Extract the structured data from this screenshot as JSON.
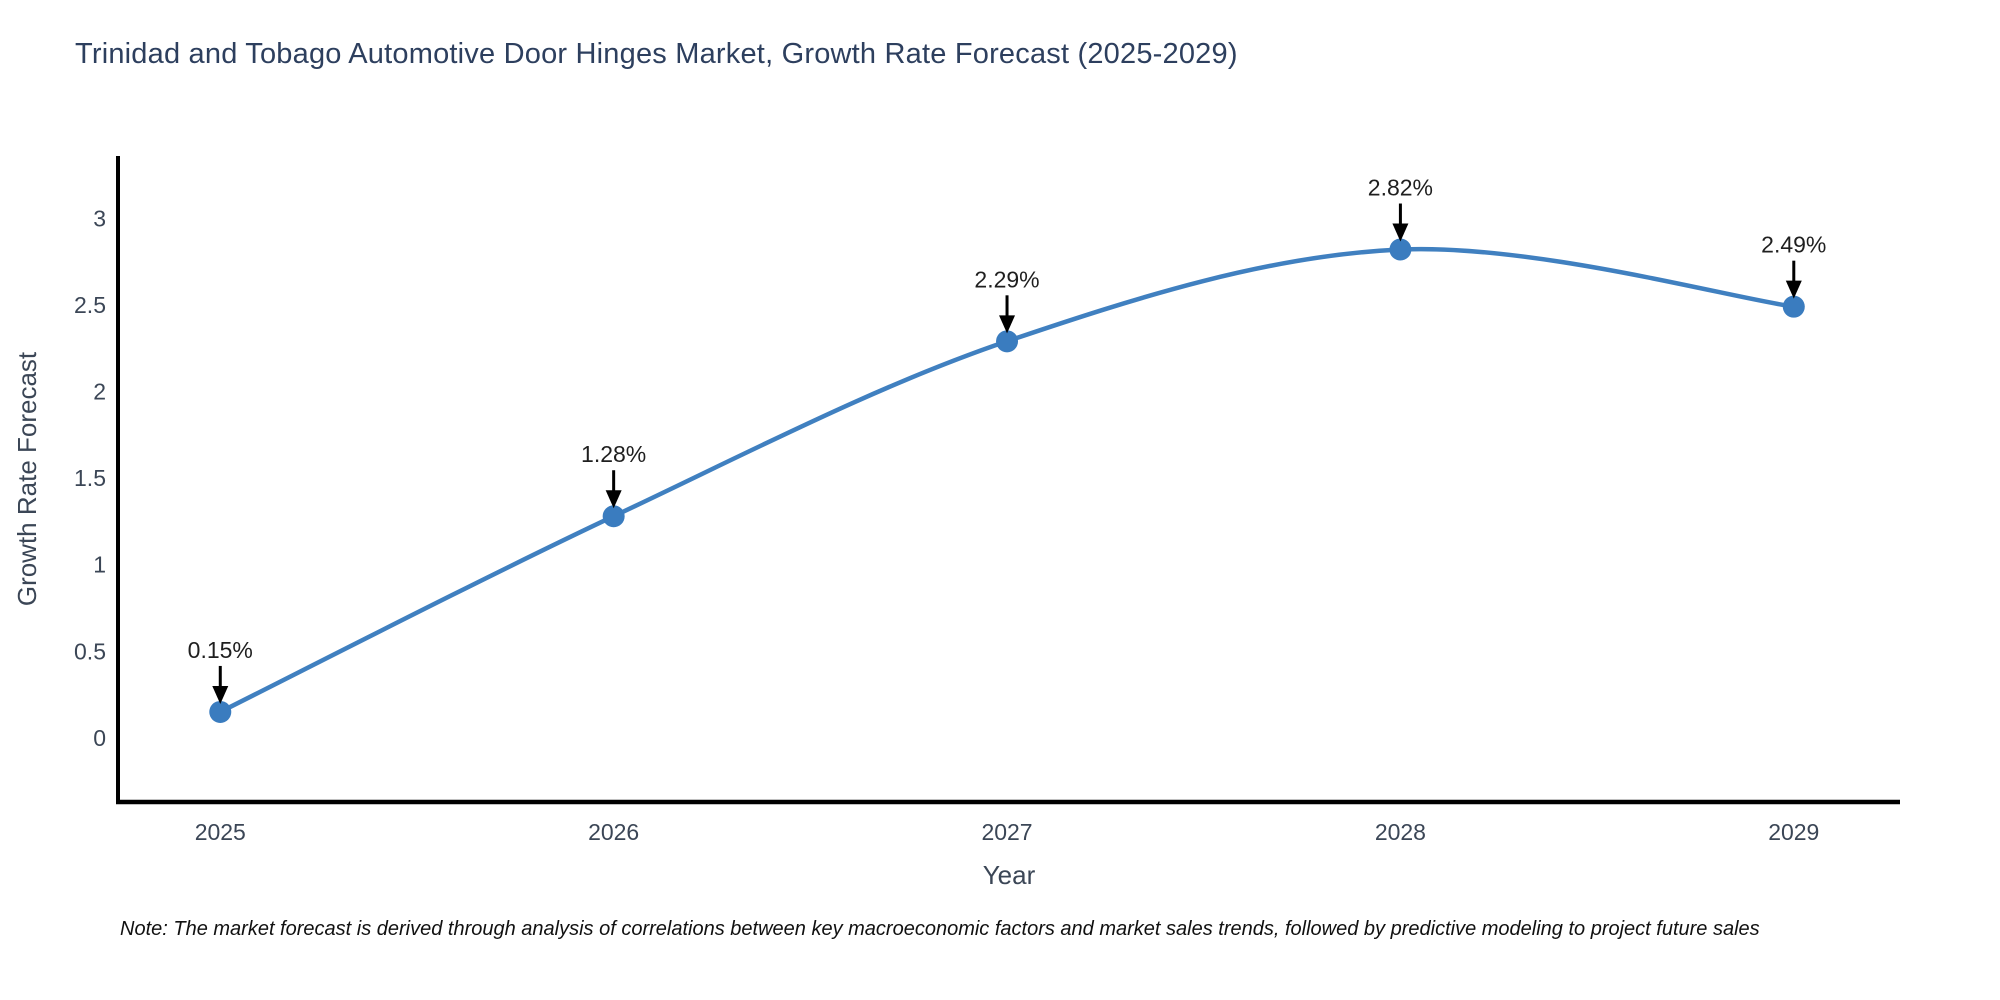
{
  "chart_data": {
    "type": "line",
    "title": "Trinidad and Tobago Automotive Door Hinges Market, Growth Rate Forecast (2025-2029)",
    "xlabel": "Year",
    "ylabel": "Growth Rate Forecast",
    "x": [
      2025,
      2026,
      2027,
      2028,
      2029
    ],
    "xticks": [
      "2025",
      "2026",
      "2027",
      "2028",
      "2029"
    ],
    "series": [
      {
        "name": "Growth Rate Forecast",
        "values": [
          0.15,
          1.28,
          2.29,
          2.82,
          2.49
        ]
      }
    ],
    "point_labels": [
      "0.15%",
      "1.28%",
      "2.29%",
      "2.82%",
      "2.49%"
    ],
    "ytick_labels": [
      "0",
      "0.5",
      "1",
      "1.5",
      "2",
      "2.5",
      "3"
    ],
    "ytick_values": [
      0,
      0.5,
      1,
      1.5,
      2,
      2.5,
      3
    ],
    "xlim": [
      2024.74,
      2029.27
    ],
    "ylim": [
      -0.37,
      3.36
    ],
    "grid": false,
    "legend_position": "none",
    "smooth": true,
    "colors": {
      "line": "#4080c0",
      "marker": "#3a7cbf",
      "annotation_text": "#1f1f1f",
      "arrow": "#000000",
      "axis_line": "#000000",
      "tick_label": "#3b4656",
      "axis_title": "#3b4656",
      "title": "#2d3f5e"
    }
  },
  "note": "Note: The market forecast is derived through analysis of correlations between key macroeconomic factors and market sales trends, followed by predictive modeling to project future sales"
}
